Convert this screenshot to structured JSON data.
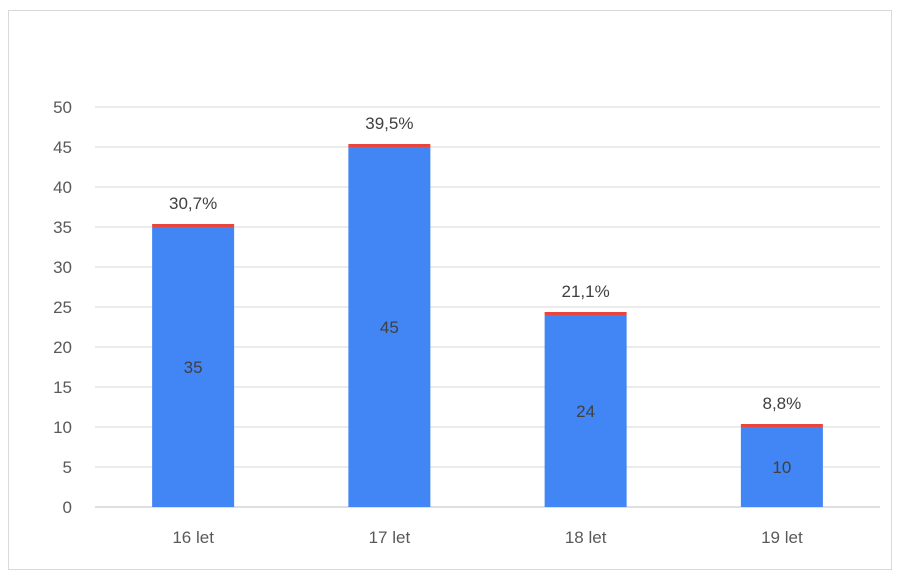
{
  "chart_data": {
    "type": "bar",
    "categories": [
      "16 let",
      "17 let",
      "18 let",
      "19 let"
    ],
    "values": [
      35,
      45,
      24,
      10
    ],
    "value_labels": [
      "35",
      "45",
      "24",
      "10"
    ],
    "percent_labels": [
      "30,7%",
      "39,5%",
      "21,1%",
      "8,8%"
    ],
    "y_ticks": [
      "0",
      "5",
      "10",
      "15",
      "20",
      "25",
      "30",
      "35",
      "40",
      "45",
      "50"
    ],
    "ylim": [
      0,
      50
    ],
    "grid": true,
    "title": "",
    "xlabel": "",
    "ylabel": "",
    "colors": {
      "bar": "#4285f4",
      "bar_cap": "#e8453c",
      "grid": "#d9d9d9",
      "axis": "#bfbfbf"
    }
  }
}
